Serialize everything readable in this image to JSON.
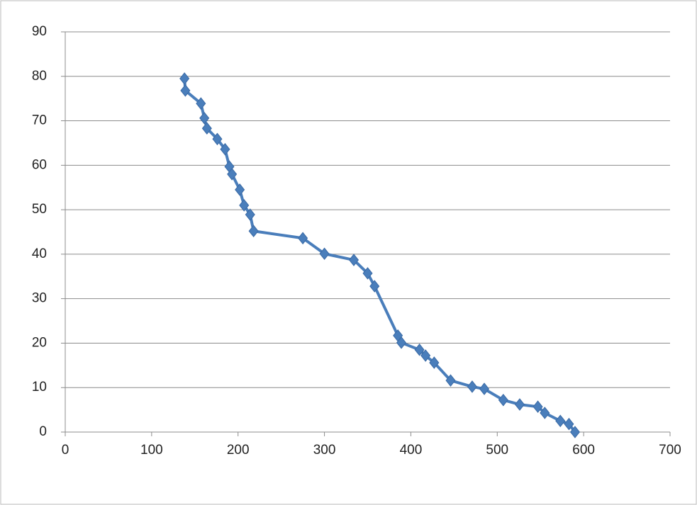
{
  "chart_data": {
    "type": "scatter-line",
    "x": [
      138,
      139,
      157,
      161,
      164,
      176,
      185,
      190,
      193,
      202,
      207,
      214,
      218,
      275,
      300,
      334,
      350,
      358,
      385,
      389,
      410,
      417,
      427,
      446,
      471,
      485,
      507,
      526,
      547,
      555,
      573,
      583,
      590
    ],
    "series": [
      {
        "color": "#4a7ebb",
        "values": [
          79.5,
          76.8,
          73.9,
          70.6,
          68.3,
          65.9,
          63.6,
          59.7,
          58,
          54.5,
          51,
          48.9,
          45.2,
          43.6,
          40.1,
          38.7,
          35.7,
          32.8,
          21.7,
          20.1,
          18.5,
          17.2,
          15.6,
          11.6,
          10.2,
          9.7,
          7.2,
          6.2,
          5.7,
          4.3,
          2.5,
          1.8,
          0
        ]
      }
    ],
    "xlim": [
      0,
      700
    ],
    "xticks": [
      0,
      100,
      200,
      300,
      400,
      500,
      600,
      700
    ],
    "ylim": [
      0,
      90
    ],
    "yticks": [
      0,
      10,
      20,
      30,
      40,
      50,
      60,
      70,
      80,
      90
    ],
    "grid": true
  }
}
